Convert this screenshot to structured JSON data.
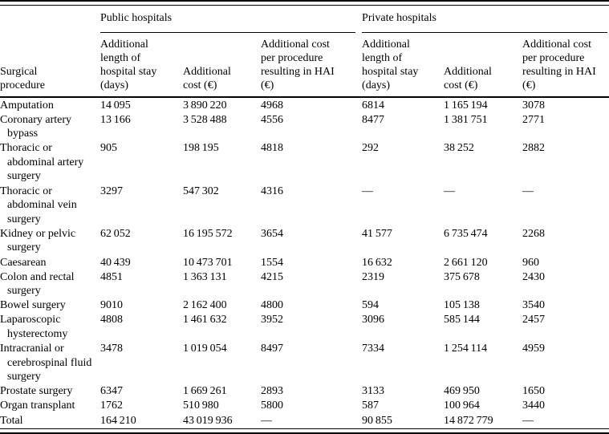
{
  "table": {
    "corner_header": "Surgical\nprocedure",
    "groups": [
      {
        "label": "Public hospitals"
      },
      {
        "label": "Private hospitals"
      }
    ],
    "subheaders": [
      "Additional\nlength of\nhospital stay\n(days)",
      "Additional\ncost (€)",
      "Additional cost\nper procedure\nresulting in HAI\n(€)",
      "Additional\nlength of\nhospital stay\n(days)",
      "Additional\ncost (€)",
      "Additional cost\nper procedure\nresulting in HAI\n(€)"
    ],
    "missing_value_glyph": "—",
    "rows": [
      {
        "procedure": "Amputation",
        "values": [
          "14 095",
          "3 890 220",
          "4968",
          "6814",
          "1 165 194",
          "3078"
        ]
      },
      {
        "procedure": "Coronary artery bypass",
        "values": [
          "13 166",
          "3 528 488",
          "4556",
          "8477",
          "1 381 751",
          "2771"
        ]
      },
      {
        "procedure": "Thoracic or abdominal artery surgery",
        "values": [
          "905",
          "198 195",
          "4818",
          "292",
          "38 252",
          "2882"
        ]
      },
      {
        "procedure": "Thoracic or abdominal vein surgery",
        "values": [
          "3297",
          "547 302",
          "4316",
          "—",
          "—",
          "—"
        ]
      },
      {
        "procedure": "Kidney or pelvic surgery",
        "values": [
          "62 052",
          "16 195 572",
          "3654",
          "41 577",
          "6 735 474",
          "2268"
        ]
      },
      {
        "procedure": "Caesarean",
        "values": [
          "40 439",
          "10 473 701",
          "1554",
          "16 632",
          "2 661 120",
          "960"
        ]
      },
      {
        "procedure": "Colon and rectal surgery",
        "values": [
          "4851",
          "1 363 131",
          "4215",
          "2319",
          "375 678",
          "2430"
        ]
      },
      {
        "procedure": "Bowel surgery",
        "values": [
          "9010",
          "2 162 400",
          "4800",
          "594",
          "105 138",
          "3540"
        ]
      },
      {
        "procedure": "Laparoscopic hysterectomy",
        "values": [
          "4808",
          "1 461 632",
          "3952",
          "3096",
          "585 144",
          "2457"
        ]
      },
      {
        "procedure": "Intracranial or cerebrospinal fluid surgery",
        "values": [
          "3478",
          "1 019 054",
          "8497",
          "7334",
          "1 254 114",
          "4959"
        ]
      },
      {
        "procedure": "Prostate surgery",
        "values": [
          "6347",
          "1 669 261",
          "2893",
          "3133",
          "469 950",
          "1650"
        ]
      },
      {
        "procedure": "Organ transplant",
        "values": [
          "1762",
          "510 980",
          "5800",
          "587",
          "100 964",
          "3440"
        ]
      },
      {
        "procedure": "Total",
        "values": [
          "164 210",
          "43 019 936",
          "—",
          "90 855",
          "14 872 779",
          "—"
        ]
      }
    ]
  }
}
